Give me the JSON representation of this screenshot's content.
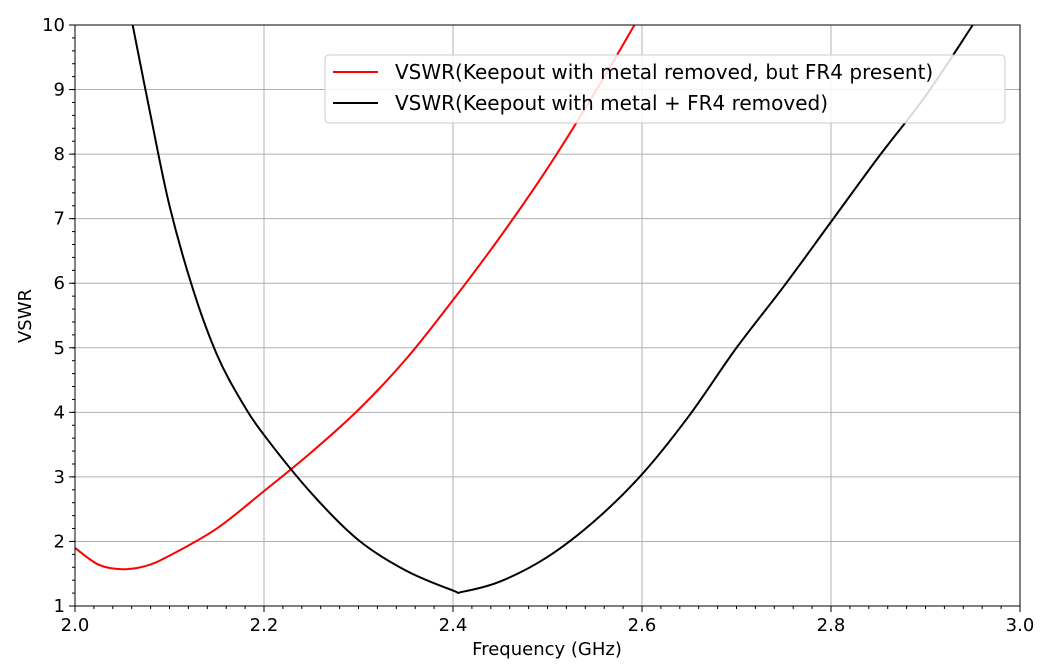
{
  "chart_data": {
    "type": "line",
    "title": "",
    "xlabel": "Frequency (GHz)",
    "ylabel": "VSWR",
    "xlim": [
      2.0,
      3.0
    ],
    "ylim": [
      1,
      10
    ],
    "xticks": [
      "2.0",
      "2.2",
      "2.4",
      "2.6",
      "2.8",
      "3.0"
    ],
    "xtick_values": [
      2.0,
      2.2,
      2.4,
      2.6,
      2.8,
      3.0
    ],
    "yticks": [
      "1",
      "2",
      "3",
      "4",
      "5",
      "6",
      "7",
      "8",
      "9",
      "10"
    ],
    "ytick_values": [
      1,
      2,
      3,
      4,
      5,
      6,
      7,
      8,
      9,
      10
    ],
    "grid": true,
    "legend_position": "top-right",
    "series": [
      {
        "name": "VSWR(Keepout with metal removed, but FR4 present)",
        "color": "#ff0000",
        "x": [
          2.0,
          2.025,
          2.05,
          2.075,
          2.1,
          2.15,
          2.2,
          2.25,
          2.3,
          2.35,
          2.4,
          2.45,
          2.5,
          2.55,
          2.592
        ],
        "y": [
          1.9,
          1.64,
          1.57,
          1.62,
          1.78,
          2.2,
          2.78,
          3.38,
          4.04,
          4.82,
          5.74,
          6.72,
          7.78,
          8.95,
          10
        ]
      },
      {
        "name": "VSWR(Keepout with metal + FR4 removed)",
        "color": "#000000",
        "x": [
          2.061,
          2.08,
          2.1,
          2.125,
          2.15,
          2.175,
          2.2,
          2.25,
          2.3,
          2.35,
          2.4,
          2.41,
          2.45,
          2.5,
          2.55,
          2.6,
          2.65,
          2.7,
          2.75,
          2.8,
          2.85,
          2.9,
          2.95
        ],
        "y": [
          10,
          8.6,
          7.2,
          5.9,
          4.9,
          4.2,
          3.65,
          2.75,
          2.02,
          1.55,
          1.24,
          1.22,
          1.38,
          1.76,
          2.32,
          3.04,
          3.95,
          5.0,
          5.95,
          6.95,
          7.95,
          8.9,
          10
        ]
      }
    ]
  }
}
